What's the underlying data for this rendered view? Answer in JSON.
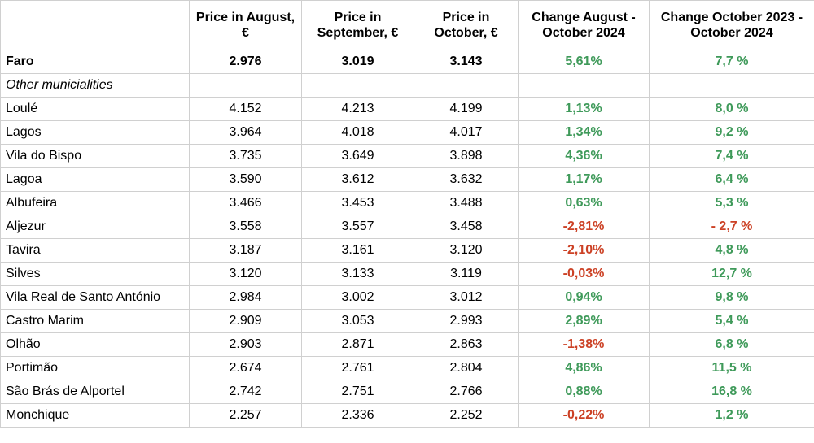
{
  "table": {
    "header": [
      "Price in August, €",
      "Price in September, €",
      "Price in October, €",
      "Change August - October 2024",
      "Change October 2023 - October 2024"
    ],
    "rows": [
      [
        "Faro",
        "2.976",
        "3.019",
        "3.143",
        "5,61%",
        "7,7 %"
      ],
      [
        "Other municialities"
      ],
      [
        "Loulé",
        "4.152",
        "4.213",
        "4.199",
        "1,13%",
        "8,0 %"
      ],
      [
        "Lagos",
        "3.964",
        "4.018",
        "4.017",
        "1,34%",
        "9,2 %"
      ],
      [
        "Vila do Bispo",
        "3.735",
        "3.649",
        "3.898",
        "4,36%",
        "7,4 %"
      ],
      [
        "Lagoa",
        "3.590",
        "3.612",
        "3.632",
        "1,17%",
        "6,4 %"
      ],
      [
        "Albufeira",
        "3.466",
        "3.453",
        "3.488",
        "0,63%",
        "5,3 %"
      ],
      [
        "Aljezur",
        "3.558",
        "3.557",
        "3.458",
        "-2,81%",
        "- 2,7 %"
      ],
      [
        "Tavira",
        "3.187",
        "3.161",
        "3.120",
        "-2,10%",
        "4,8 %"
      ],
      [
        "Silves",
        "3.120",
        "3.133",
        "3.119",
        "-0,03%",
        "12,7 %"
      ],
      [
        "Vila Real de Santo António",
        "2.984",
        "3.002",
        "3.012",
        "0,94%",
        "9,8 %"
      ],
      [
        "Castro Marim",
        "2.909",
        "3.053",
        "2.993",
        "2,89%",
        "5,4 %"
      ],
      [
        "Olhão",
        "2.903",
        "2.871",
        "2.863",
        "-1,38%",
        "6,8 %"
      ],
      [
        "Portimão",
        "2.674",
        "2.761",
        "2.804",
        "4,86%",
        "11,5 %"
      ],
      [
        "São Brás de Alportel",
        "2.742",
        "2.751",
        "2.766",
        "0,88%",
        "16,8 %"
      ],
      [
        "Monchique",
        "2.257",
        "2.336",
        "2.252",
        "-0,22%",
        "1,2 %"
      ]
    ]
  }
}
